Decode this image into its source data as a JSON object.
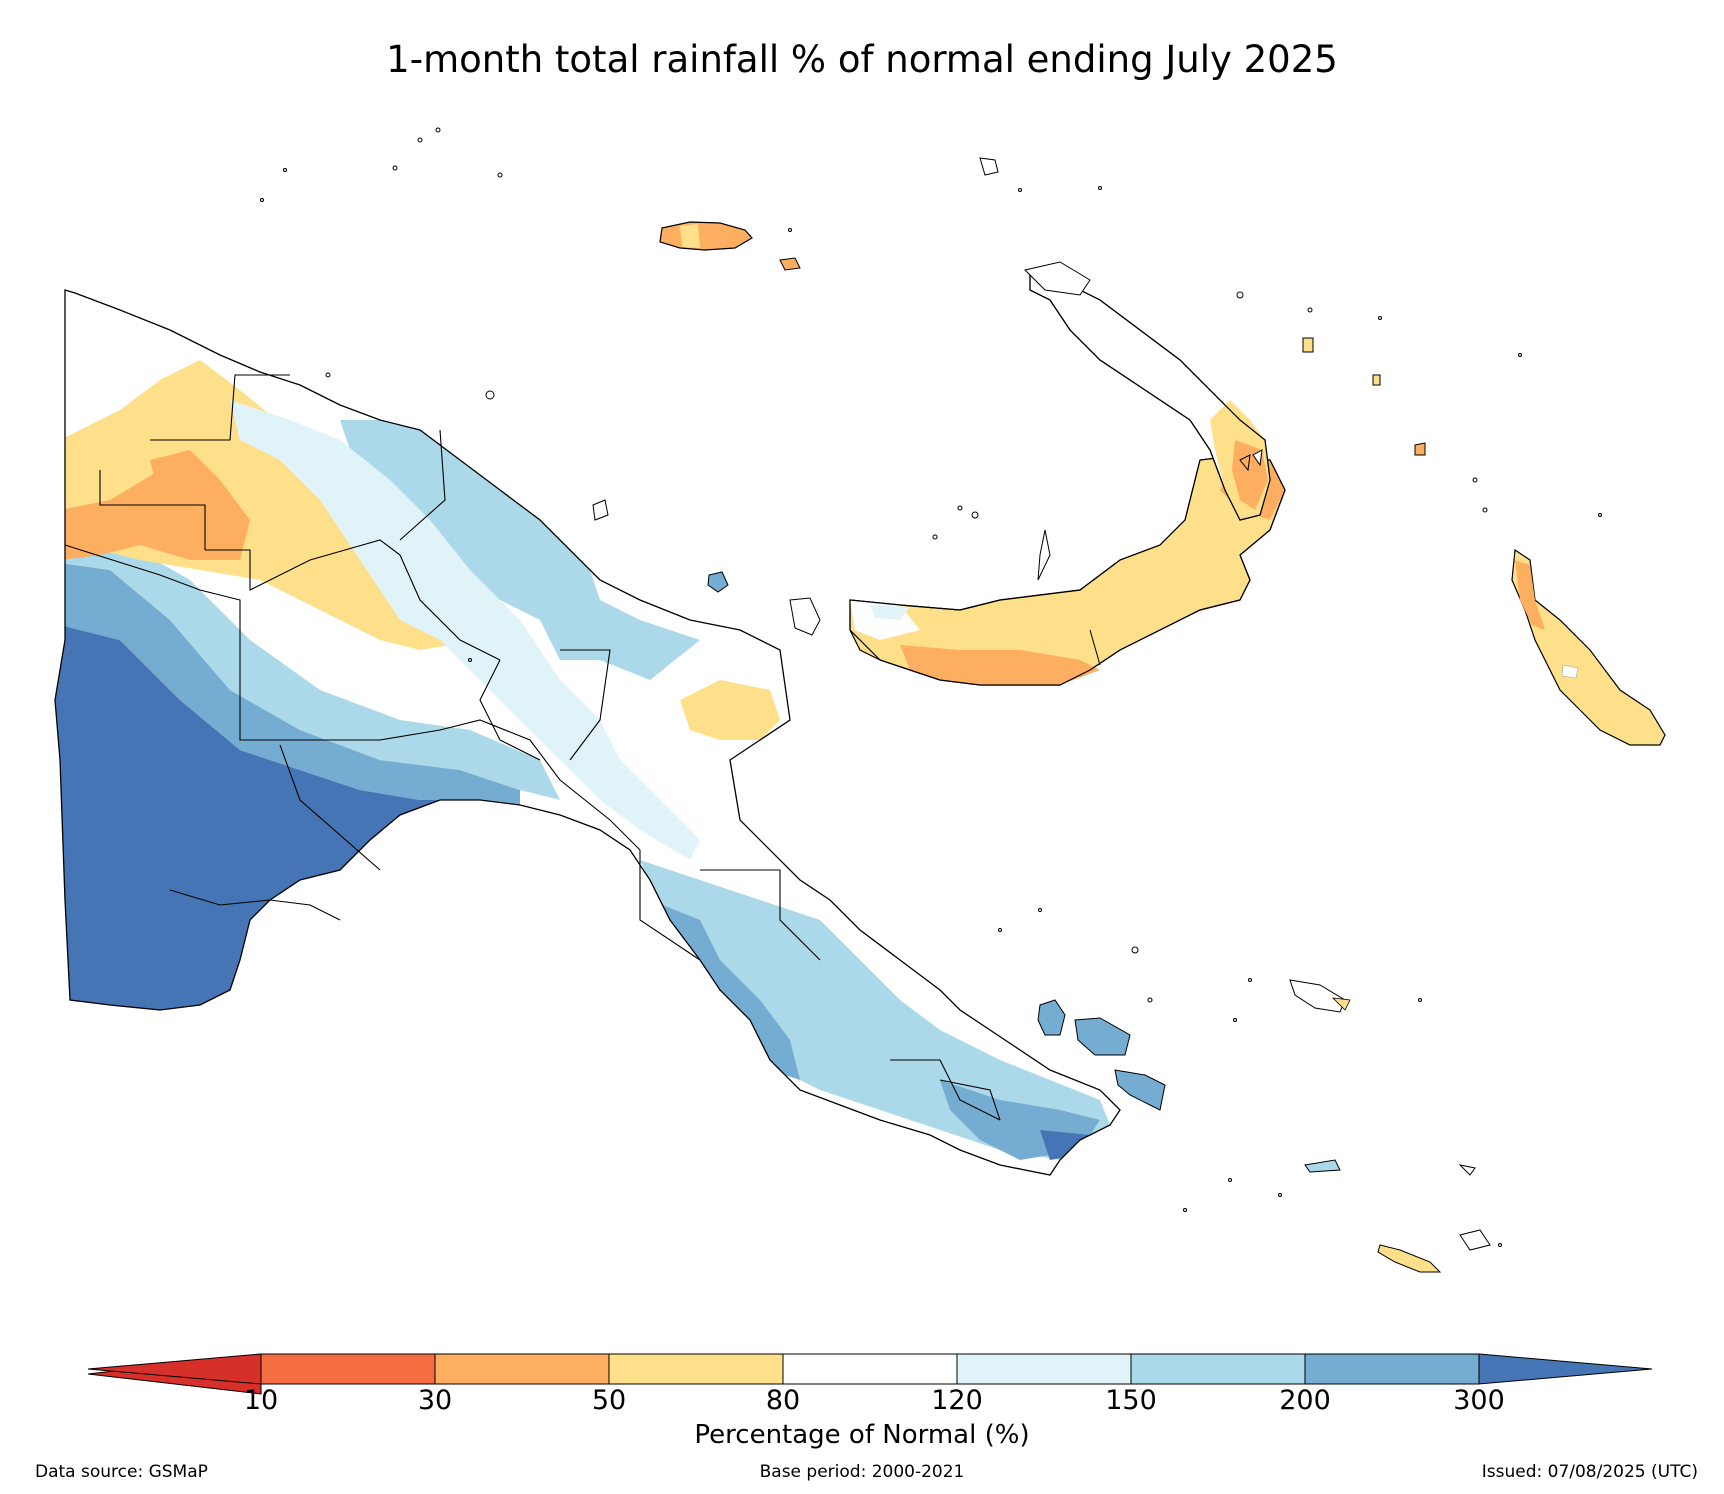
{
  "title": "1-month total rainfall % of normal ending July 2025",
  "colorbar": {
    "label": "Percentage of Normal (%)",
    "ticks": [
      "10",
      "30",
      "50",
      "80",
      "120",
      "150",
      "200",
      "300"
    ],
    "bins": [
      {
        "range": "<10",
        "color": "#d7302b"
      },
      {
        "range": "10-30",
        "color": "#f46d43"
      },
      {
        "range": "30-50",
        "color": "#fdae61"
      },
      {
        "range": "50-80",
        "color": "#fee08b"
      },
      {
        "range": "80-120",
        "color": "#ffffff"
      },
      {
        "range": "120-150",
        "color": "#e0f3f8"
      },
      {
        "range": "150-200",
        "color": "#abd9e9"
      },
      {
        "range": "200-300",
        "color": "#74add1"
      },
      {
        "range": ">300",
        "color": "#4575b4"
      }
    ]
  },
  "footer": {
    "source": "Data source: GSMaP",
    "base_period": "Base period: 2000-2021",
    "issued": "Issued: 07/08/2025 (UTC)"
  }
}
